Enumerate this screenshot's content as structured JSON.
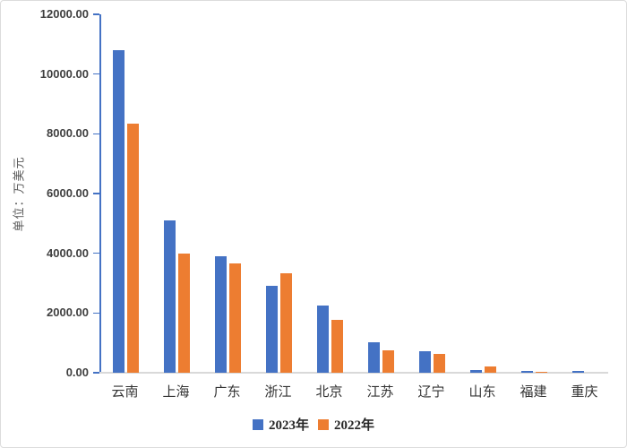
{
  "chart_data": {
    "type": "bar",
    "title": "",
    "ylabel": "单位：万美元",
    "xlabel": "",
    "categories": [
      "云南",
      "上海",
      "广东",
      "浙江",
      "北京",
      "江苏",
      "辽宁",
      "山东",
      "福建",
      "重庆"
    ],
    "series": [
      {
        "name": "2023年",
        "color": "#4472C4",
        "values": [
          10800,
          5100,
          3900,
          2900,
          2240,
          1020,
          720,
          100,
          70,
          55
        ]
      },
      {
        "name": "2022年",
        "color": "#ED7D31",
        "values": [
          8350,
          4000,
          3670,
          3340,
          1760,
          760,
          630,
          220,
          45,
          0
        ]
      }
    ],
    "y_ticks": [
      "0.00",
      "2000.00",
      "4000.00",
      "6000.00",
      "8000.00",
      "10000.00",
      "12000.00"
    ],
    "ylim": [
      0,
      12000
    ],
    "grid": false,
    "legend_position": "bottom"
  },
  "colors": {
    "axis_blue": "#4472C4",
    "baseline_gray": "#d9d9d9",
    "tick_text": "#3f3f3f",
    "category_text": "#333333",
    "axis_title_text": "#595959"
  }
}
